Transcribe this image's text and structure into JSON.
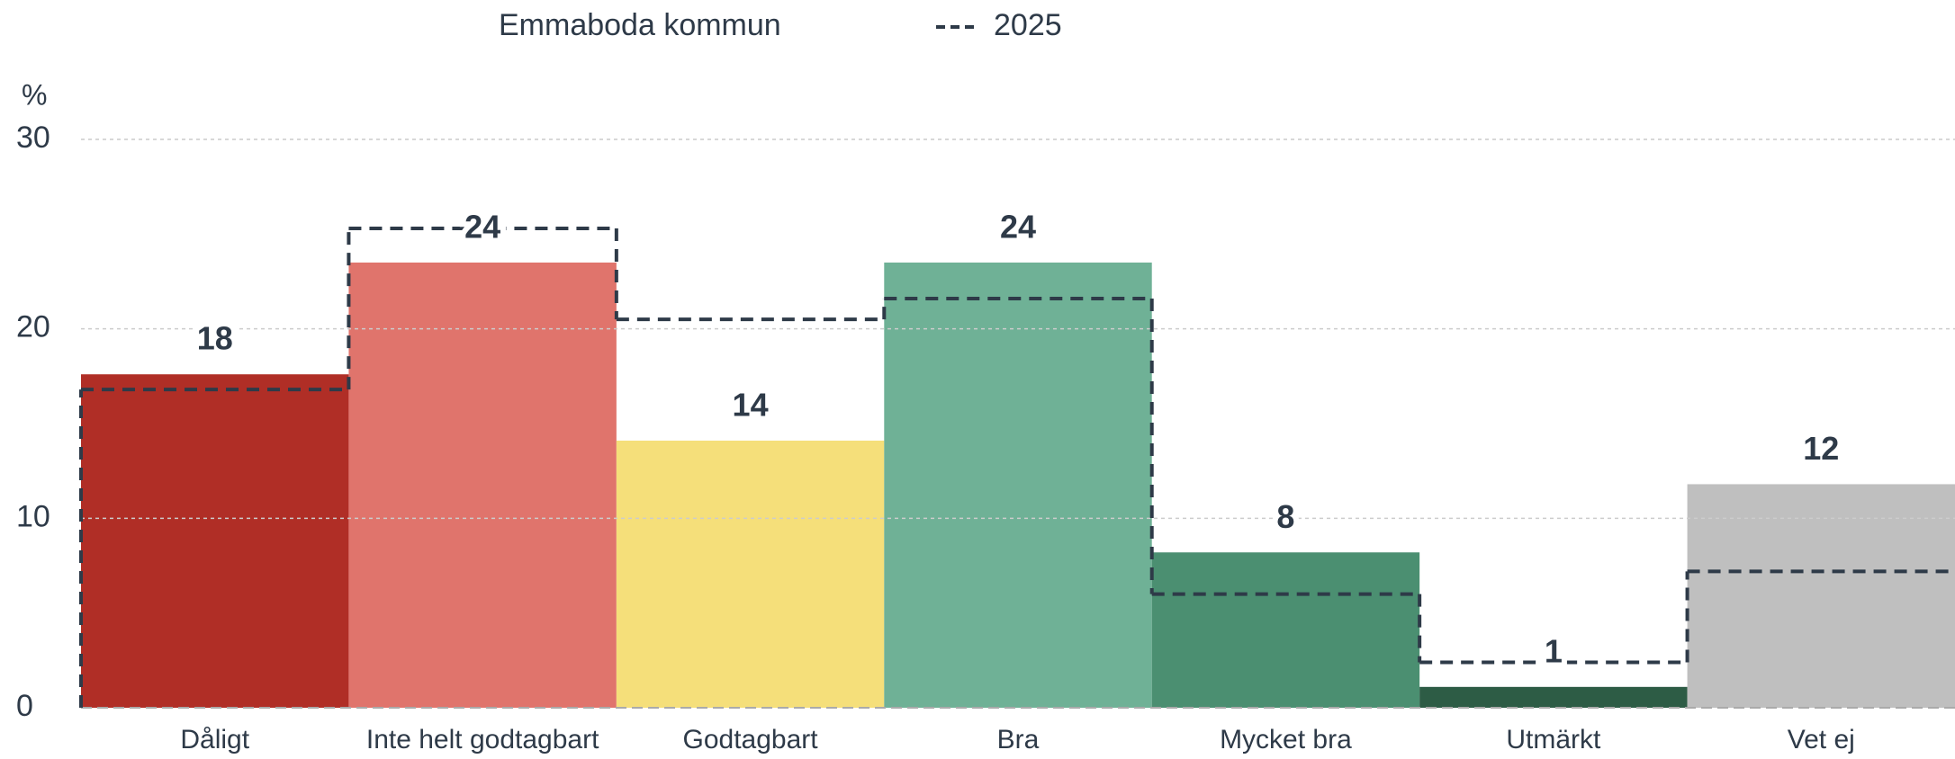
{
  "chart_data": {
    "type": "bar",
    "y_label": "%",
    "categories": [
      "Dåligt",
      "Inte helt godtagbart",
      "Godtagbart",
      "Bra",
      "Mycket bra",
      "Utmärkt",
      "Vet ej"
    ],
    "series": [
      {
        "name": "Emmaboda kommun",
        "colors": [
          "#b02e26",
          "#e0746c",
          "#f5df7a",
          "#6fb196",
          "#4b8f71",
          "#2d5c45",
          "#bfbfbf"
        ],
        "values": [
          17.6,
          23.5,
          14.1,
          23.5,
          8.2,
          1.1,
          11.8
        ],
        "value_labels": [
          "18",
          "24",
          "14",
          "24",
          "8",
          "1",
          "12"
        ]
      },
      {
        "name": "2025",
        "color": "#2e3a48",
        "style": "dashed-step",
        "values": [
          16.8,
          25.3,
          20.5,
          21.6,
          6.0,
          2.4,
          7.2
        ]
      }
    ],
    "ylim": [
      0,
      30
    ],
    "yticks": [
      0,
      10,
      20,
      30
    ],
    "grid": true
  }
}
